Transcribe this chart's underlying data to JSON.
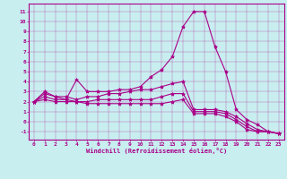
{
  "xlabel": "Windchill (Refroidissement éolien,°C)",
  "background_color": "#c8eef0",
  "line_color": "#aa0088",
  "xlim": [
    -0.5,
    23.5
  ],
  "ylim": [
    -1.8,
    11.8
  ],
  "xticks": [
    0,
    1,
    2,
    3,
    4,
    5,
    6,
    7,
    8,
    9,
    10,
    11,
    12,
    13,
    14,
    15,
    16,
    17,
    18,
    19,
    20,
    21,
    22,
    23
  ],
  "yticks": [
    -1,
    0,
    1,
    2,
    3,
    4,
    5,
    6,
    7,
    8,
    9,
    10,
    11
  ],
  "series": [
    [
      2.0,
      3.0,
      2.5,
      2.2,
      4.2,
      3.0,
      3.0,
      3.0,
      3.2,
      3.2,
      3.5,
      4.5,
      5.2,
      6.5,
      9.5,
      11.0,
      11.0,
      7.5,
      5.0,
      1.2,
      0.2,
      -0.3,
      -1.0,
      -1.2
    ],
    [
      2.0,
      2.8,
      2.5,
      2.5,
      2.2,
      2.5,
      2.5,
      2.8,
      2.8,
      3.0,
      3.2,
      3.2,
      3.5,
      3.8,
      4.0,
      1.2,
      1.2,
      1.2,
      1.0,
      0.5,
      -0.2,
      -0.8,
      -1.0,
      -1.2
    ],
    [
      2.0,
      2.5,
      2.2,
      2.2,
      2.0,
      2.0,
      2.2,
      2.2,
      2.2,
      2.2,
      2.2,
      2.2,
      2.5,
      2.8,
      2.8,
      1.0,
      1.0,
      1.0,
      0.8,
      0.2,
      -0.5,
      -1.0,
      -1.0,
      -1.2
    ],
    [
      2.0,
      2.2,
      2.0,
      2.0,
      2.0,
      1.8,
      1.8,
      1.8,
      1.8,
      1.8,
      1.8,
      1.8,
      1.8,
      2.0,
      2.2,
      0.8,
      0.8,
      0.8,
      0.5,
      0.0,
      -0.8,
      -1.0,
      -1.0,
      -1.2
    ]
  ]
}
